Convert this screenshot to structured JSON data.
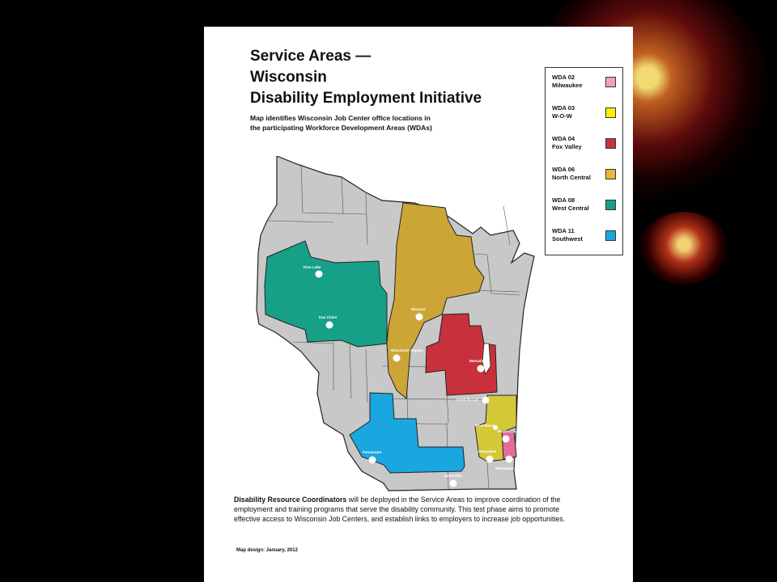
{
  "title": {
    "line1": "Service Areas —",
    "line2": "Wisconsin",
    "line3": "Disability Employment Initiative"
  },
  "subtitle": {
    "line1": "Map identifies Wisconsin Job Center office locations in",
    "line2": "the participating Workforce Development Areas (WDAs)"
  },
  "legend": [
    {
      "code": "WDA 02",
      "name": "Milwaukee",
      "color": "#f2a2c0"
    },
    {
      "code": "WDA 03",
      "name": "W-O-W",
      "color": "#ffee00"
    },
    {
      "code": "WDA 04",
      "name": "Fox Valley",
      "color": "#c8313c"
    },
    {
      "code": "WDA 06",
      "name": "North Central",
      "color": "#e9b83a"
    },
    {
      "code": "WDA 08",
      "name": "West Central",
      "color": "#17a088"
    },
    {
      "code": "WDA 11",
      "name": "Southwest",
      "color": "#1aa6df"
    }
  ],
  "map": {
    "region_colors": {
      "other": "#c8c8c8",
      "north_central": "#cca537",
      "west_central": "#17a088",
      "fox_valley": "#c8313c",
      "wow": "#d5c838",
      "milwaukee": "#e56b9a",
      "southwest": "#1aa6df"
    },
    "cities": [
      {
        "name": "Rice Lake"
      },
      {
        "name": "Eau Claire"
      },
      {
        "name": "Wausau"
      },
      {
        "name": "Wisconsin Rapids"
      },
      {
        "name": "Menasha"
      },
      {
        "name": "Fond du Lac"
      },
      {
        "name": "West Bend"
      },
      {
        "name": "Waukesha"
      },
      {
        "name": "Pewaukee"
      },
      {
        "name": "Milwaukee"
      },
      {
        "name": "Fennimore"
      },
      {
        "name": "Janesville"
      }
    ]
  },
  "footer": {
    "lead": "Disability Resource Coordinators",
    "line1_rest": " will be deployed in the Service Areas to improve coordination of the",
    "line2": "employment and training programs that serve the disability community. This test phase aims to promote",
    "line3": "effective access to Wisconsin Job Centers, and establish links to employers to increase job opportunities."
  },
  "credit": "Map design: January, 2012"
}
